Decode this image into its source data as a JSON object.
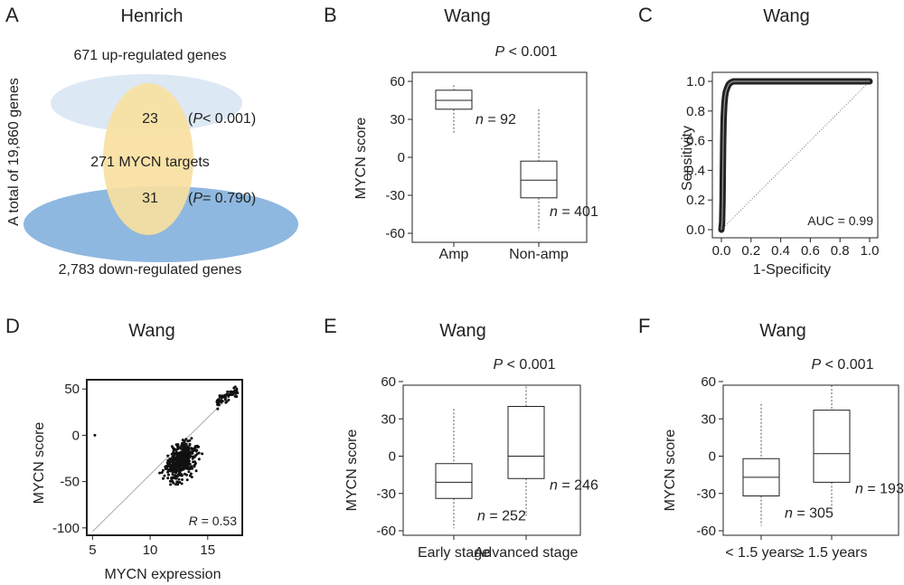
{
  "figure": {
    "panelA": {
      "letter": "A",
      "title": "Henrich",
      "total_label": "A total of 19,860 genes",
      "up_label": "671 up-regulated genes",
      "targets_label": "271 MYCN targets",
      "down_label": "2,783 down-regulated genes",
      "overlap_up": "23",
      "overlap_down": "31",
      "p_up_op": "< 0.001",
      "p_down_op": "= 0.790",
      "p_italic": "P",
      "paren_open": "(",
      "paren_close": ")",
      "colors": {
        "up": "#dde8f5",
        "targets": "#f7dfa0",
        "down": "#8fb8e0",
        "overlap_up": "#e2dfbf",
        "overlap_down": "#b8b58d"
      }
    }
  },
  "chart_data": [
    {
      "panel": "B",
      "type": "box",
      "title": "Wang",
      "p_text_italic": "P",
      "p_text_rest": " < 0.001",
      "xlabel": "",
      "ylabel": "MYCN score",
      "ylim": [
        -60,
        60
      ],
      "yticks": [
        "60",
        "30",
        "0",
        "-30",
        "-60"
      ],
      "ytick_values": [
        60,
        30,
        0,
        -30,
        -60
      ],
      "categories": [
        "Amp",
        "Non-amp"
      ],
      "n_prefix": "n",
      "n_eq": " = ",
      "groups": [
        {
          "name": "Amp",
          "whisker_low": 19,
          "q1": 38,
          "median": 45,
          "q3": 53,
          "whisker_high": 57,
          "n": "92"
        },
        {
          "name": "Non-amp",
          "whisker_low": -58,
          "q1": -32,
          "median": -18,
          "q3": -3,
          "whisker_high": 38,
          "n": "401"
        }
      ]
    },
    {
      "panel": "C",
      "type": "roc",
      "title": "Wang",
      "xlabel": "1-Specificity",
      "ylabel": "Sensitivity",
      "xlim": [
        0,
        1
      ],
      "ylim": [
        0,
        1
      ],
      "xticks": [
        "0.0",
        "0.2",
        "0.4",
        "0.6",
        "0.8",
        "1.0"
      ],
      "yticks": [
        "0.0",
        "0.2",
        "0.4",
        "0.6",
        "0.8",
        "1.0"
      ],
      "tick_values": [
        0,
        0.2,
        0.4,
        0.6,
        0.8,
        1.0
      ],
      "auc_label": "AUC = 0.99",
      "curve": [
        [
          0,
          0
        ],
        [
          0.005,
          0.05
        ],
        [
          0.008,
          0.2
        ],
        [
          0.01,
          0.4
        ],
        [
          0.012,
          0.6
        ],
        [
          0.015,
          0.75
        ],
        [
          0.02,
          0.85
        ],
        [
          0.025,
          0.9
        ],
        [
          0.03,
          0.93
        ],
        [
          0.04,
          0.96
        ],
        [
          0.05,
          0.98
        ],
        [
          0.06,
          0.99
        ],
        [
          0.08,
          1.0
        ],
        [
          0.2,
          1.0
        ],
        [
          0.4,
          1.0
        ],
        [
          0.6,
          1.0
        ],
        [
          0.8,
          1.0
        ],
        [
          1.0,
          1.0
        ]
      ]
    },
    {
      "panel": "D",
      "type": "scatter",
      "title": "Wang",
      "xlabel": "MYCN expression",
      "ylabel": "MYCN score",
      "xlim": [
        4.5,
        18
      ],
      "ylim": [
        -108,
        60
      ],
      "xticks": [
        "5",
        "10",
        "15"
      ],
      "xtick_values": [
        5,
        10,
        15
      ],
      "yticks": [
        "50",
        "0",
        "-50",
        "-100"
      ],
      "ytick_values": [
        50,
        0,
        -50,
        -100
      ],
      "r_label_italic": "R",
      "r_label_rest": " = 0.53",
      "fit_line": [
        [
          5,
          -104
        ],
        [
          17.5,
          50
        ]
      ],
      "point_count": 493
    },
    {
      "panel": "E",
      "type": "box",
      "title": "Wang",
      "p_text_italic": "P",
      "p_text_rest": " < 0.001",
      "xlabel": "",
      "ylabel": "MYCN score",
      "ylim": [
        -60,
        60
      ],
      "yticks": [
        "60",
        "30",
        "0",
        "-30",
        "-60"
      ],
      "ytick_values": [
        60,
        30,
        0,
        -30,
        -60
      ],
      "categories": [
        "Early stage",
        "Advanced stage"
      ],
      "n_prefix": "n",
      "n_eq": " = ",
      "groups": [
        {
          "name": "Early stage",
          "whisker_low": -58,
          "q1": -34,
          "median": -21,
          "q3": -6,
          "whisker_high": 38,
          "n": "252"
        },
        {
          "name": "Advanced stage",
          "whisker_low": -48,
          "q1": -18,
          "median": 0,
          "q3": 40,
          "whisker_high": 56,
          "n": "246"
        }
      ]
    },
    {
      "panel": "F",
      "type": "box",
      "title": "Wang",
      "p_text_italic": "P",
      "p_text_rest": " < 0.001",
      "xlabel": "",
      "ylabel": "MYCN score",
      "ylim": [
        -60,
        60
      ],
      "yticks": [
        "60",
        "30",
        "0",
        "-30",
        "-60"
      ],
      "ytick_values": [
        60,
        30,
        0,
        -30,
        -60
      ],
      "categories": [
        "< 1.5 years",
        "≥ 1.5 years"
      ],
      "n_prefix": "n",
      "n_eq": " = ",
      "groups": [
        {
          "name": "< 1.5 years",
          "whisker_low": -56,
          "q1": -32,
          "median": -17,
          "q3": -2,
          "whisker_high": 42,
          "n": "305"
        },
        {
          "name": "≥ 1.5 years",
          "whisker_low": -46,
          "q1": -21,
          "median": 2,
          "q3": 37,
          "whisker_high": 57,
          "n": "193"
        }
      ]
    }
  ]
}
